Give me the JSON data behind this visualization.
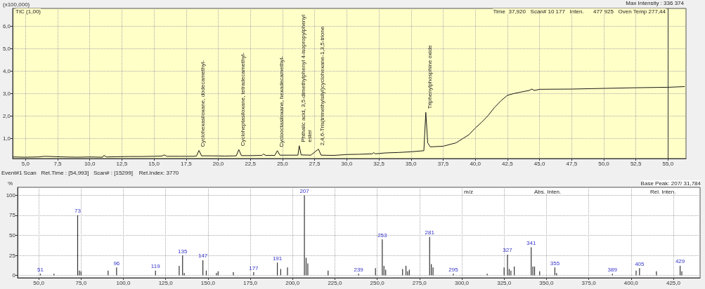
{
  "chart_data": [
    {
      "type": "line",
      "ylabel": "(x100,000)",
      "annotations": [
        "TIC (1,00)",
        "Max Intensity : 336 374",
        "Time  37,920   Scan# 10 177   Inten.      477 925   Oven Temp 277,44",
        {
          "text": "Cyclohexasiloxane, dodecamethyl-",
          "x": 18.5,
          "y": 0.46
        },
        {
          "text": "Cycloheptasiloxane, tetradecamethyl-",
          "x": 21.6,
          "y": 0.5
        },
        {
          "text": "Cyclooctasiloxane, hexadecamethyl-",
          "x": 24.6,
          "y": 0.45
        },
        {
          "text": "Phthalic acid, 3,5-dimethylphenyl 4-isopropylphenyl ester",
          "x": 26.3,
          "y": 0.67
        },
        {
          "text": "2,4,6-Tris(trimethylsilyl)cyclohexane-1,3,5-trione",
          "x": 27.8,
          "y": 0.52
        },
        {
          "text": "Triphenylphosphine oxide",
          "x": 36.15,
          "y": 2.16
        }
      ],
      "x": [
        4.0,
        5,
        6,
        6.5,
        7,
        8,
        9,
        10,
        11,
        11.1,
        11.3,
        12,
        13,
        14,
        15,
        15.6,
        15.8,
        16,
        17,
        18,
        18.3,
        18.5,
        18.7,
        19.5,
        20.5,
        21.4,
        21.6,
        21.8,
        22.5,
        23.4,
        23.5,
        23.7,
        24.4,
        24.6,
        24.8,
        25.5,
        26.2,
        26.3,
        26.45,
        27.2,
        27.8,
        28,
        29,
        29.8,
        30,
        31,
        32,
        32.1,
        32.2,
        33,
        34,
        35,
        36,
        36.15,
        36.3,
        36.5,
        37.5,
        38.5,
        39.5,
        40,
        40.5,
        41,
        41.5,
        42,
        42.5,
        43,
        43.5,
        44.2,
        44.4,
        44.6,
        45,
        47.5,
        50,
        52.5,
        55,
        56.3
      ],
      "series": [
        {
          "color": "#1a1a1a",
          "values": [
            0.17,
            0.16,
            0.17,
            0.2,
            0.19,
            0.17,
            0.16,
            0.17,
            0.16,
            0.24,
            0.17,
            0.18,
            0.19,
            0.19,
            0.2,
            0.21,
            0.26,
            0.2,
            0.2,
            0.2,
            0.21,
            0.46,
            0.22,
            0.22,
            0.21,
            0.22,
            0.5,
            0.23,
            0.23,
            0.24,
            0.3,
            0.24,
            0.24,
            0.45,
            0.25,
            0.25,
            0.25,
            0.67,
            0.26,
            0.25,
            0.52,
            0.25,
            0.24,
            0.27,
            0.28,
            0.29,
            0.31,
            0.37,
            0.31,
            0.35,
            0.37,
            0.4,
            0.45,
            2.16,
            0.8,
            0.62,
            0.65,
            0.8,
            1.16,
            1.46,
            1.72,
            2.02,
            2.38,
            2.68,
            2.92,
            3.0,
            3.06,
            3.14,
            3.2,
            3.14,
            3.19,
            3.2,
            3.23,
            3.26,
            3.28,
            3.31
          ]
        }
      ],
      "xlim": [
        4.0,
        56.4
      ],
      "ylim": [
        0.1,
        6.8
      ],
      "xticks": [
        {
          "value": 5,
          "label": "5,0"
        },
        {
          "value": 7.5,
          "label": "7,5"
        },
        {
          "value": 10,
          "label": "10,0"
        },
        {
          "value": 12.5,
          "label": "12,5"
        },
        {
          "value": 15,
          "label": "15,0"
        },
        {
          "value": 17.5,
          "label": "17,5"
        },
        {
          "value": 20,
          "label": "20,0"
        },
        {
          "value": 22.5,
          "label": "22,5"
        },
        {
          "value": 25,
          "label": "25,0"
        },
        {
          "value": 27.5,
          "label": "27,5"
        },
        {
          "value": 30,
          "label": "30,0"
        },
        {
          "value": 32.5,
          "label": "32,5"
        },
        {
          "value": 35,
          "label": "35,0"
        },
        {
          "value": 37.5,
          "label": "37,5"
        },
        {
          "value": 40,
          "label": "40,0"
        },
        {
          "value": 42.5,
          "label": "42,5"
        },
        {
          "value": 45,
          "label": "45,0"
        },
        {
          "value": 47.5,
          "label": "47,5"
        },
        {
          "value": 50,
          "label": "50,0"
        },
        {
          "value": 52.5,
          "label": "52,5"
        },
        {
          "value": 55,
          "label": "55,0"
        }
      ],
      "yticks": [
        {
          "value": 1,
          "label": "1,0"
        },
        {
          "value": 2,
          "label": "2,0"
        },
        {
          "value": 3,
          "label": "3,0"
        },
        {
          "value": 4,
          "label": "4,0"
        },
        {
          "value": 5,
          "label": "5,0"
        },
        {
          "value": 6,
          "label": "6,0"
        }
      ],
      "ref_lines": [
        {
          "axis": "x",
          "value": 55,
          "color": "#333333"
        }
      ],
      "grid": true,
      "marker": "none",
      "line_style": "solid"
    },
    {
      "type": "bar",
      "ylabel": "%",
      "annotations": [
        "Event#1 Scan   Ret.Time : [54,993]   Scan# : [15299]    Ret.Index: 3770",
        "Base Peak: 207/ 31,784",
        "m/z",
        "Abs. Inten.",
        "Rel. Inten.",
        {
          "text": "51",
          "x": 51,
          "y": 2
        },
        {
          "text": "73",
          "x": 73,
          "y": 75
        },
        {
          "text": "96",
          "x": 96,
          "y": 10
        },
        {
          "text": "119",
          "x": 119,
          "y": 6
        },
        {
          "text": "135",
          "x": 135,
          "y": 25
        },
        {
          "text": "147",
          "x": 147,
          "y": 19
        },
        {
          "text": "177",
          "x": 177,
          "y": 4
        },
        {
          "text": "191",
          "x": 191,
          "y": 16
        },
        {
          "text": "207",
          "x": 207,
          "y": 100
        },
        {
          "text": "239",
          "x": 239,
          "y": 2
        },
        {
          "text": "253",
          "x": 253,
          "y": 45
        },
        {
          "text": "281",
          "x": 281,
          "y": 48
        },
        {
          "text": "295",
          "x": 295,
          "y": 2
        },
        {
          "text": "327",
          "x": 327,
          "y": 26
        },
        {
          "text": "341",
          "x": 341,
          "y": 35
        },
        {
          "text": "355",
          "x": 355,
          "y": 10
        },
        {
          "text": "389",
          "x": 389,
          "y": 2
        },
        {
          "text": "405",
          "x": 405,
          "y": 9
        },
        {
          "text": "429",
          "x": 429,
          "y": 12
        }
      ],
      "x": [
        51,
        59,
        73,
        74,
        75,
        91,
        96,
        119,
        133,
        135,
        136,
        147,
        149,
        155,
        156,
        165,
        177,
        191,
        193,
        197,
        207,
        208,
        209,
        221,
        239,
        249,
        253,
        254,
        255,
        265,
        267,
        268,
        269,
        281,
        282,
        283,
        295,
        315,
        325,
        327,
        328,
        329,
        331,
        341,
        342,
        343,
        346,
        355,
        356,
        389,
        403,
        405,
        415,
        429,
        430
      ],
      "series": [
        {
          "color": "#333333",
          "values": [
            2,
            2,
            75,
            6,
            5,
            6,
            10,
            6,
            12,
            25,
            3,
            19,
            6,
            3,
            5,
            4,
            4,
            16,
            8,
            10,
            100,
            22,
            15,
            6,
            2,
            9,
            45,
            12,
            7,
            8,
            12,
            5,
            7,
            48,
            14,
            10,
            2,
            2,
            10,
            26,
            8,
            6,
            11,
            35,
            11,
            11,
            5,
            10,
            3,
            2,
            6,
            9,
            5,
            12,
            5
          ]
        }
      ],
      "xlim": [
        37.5,
        440.8
      ],
      "ylim": [
        -3,
        110
      ],
      "xticks": [
        {
          "value": 50,
          "label": "50,0"
        },
        {
          "value": 75,
          "label": "75,0"
        },
        {
          "value": 100,
          "label": "100,0"
        },
        {
          "value": 125,
          "label": "125,0"
        },
        {
          "value": 150,
          "label": "150,0"
        },
        {
          "value": 175,
          "label": "175,0"
        },
        {
          "value": 200,
          "label": "200,0"
        },
        {
          "value": 225,
          "label": "225,0"
        },
        {
          "value": 250,
          "label": "250,0"
        },
        {
          "value": 275,
          "label": "275,0"
        },
        {
          "value": 300,
          "label": "300,0"
        },
        {
          "value": 325,
          "label": "325,0"
        },
        {
          "value": 350,
          "label": "350,0"
        },
        {
          "value": 375,
          "label": "375,0"
        },
        {
          "value": 400,
          "label": "400,0"
        },
        {
          "value": 425,
          "label": "425,0"
        }
      ],
      "yticks": [
        0,
        25,
        50,
        75,
        100
      ],
      "grid": true
    }
  ]
}
